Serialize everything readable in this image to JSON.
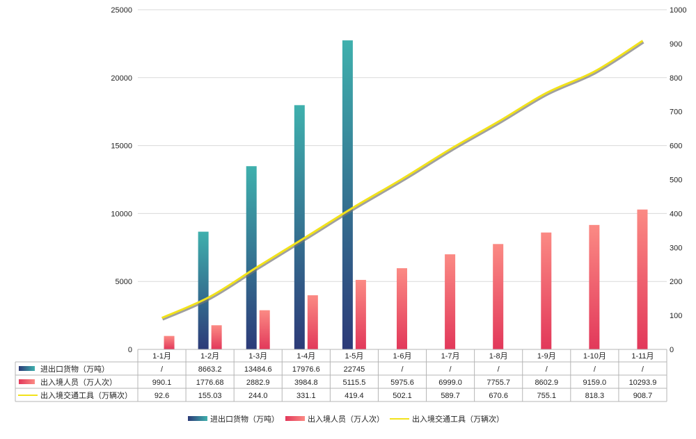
{
  "chart_data": {
    "type": "bar+line",
    "categories": [
      "1-1月",
      "1-2月",
      "1-3月",
      "1-4月",
      "1-5月",
      "1-6月",
      "1-7月",
      "1-8月",
      "1-9月",
      "1-10月",
      "1-11月"
    ],
    "series": [
      {
        "name": "进出口货物（万吨）",
        "type": "bar",
        "axis": "left",
        "values": [
          null,
          8663.2,
          13484.6,
          17976.6,
          22745,
          null,
          null,
          null,
          null,
          null,
          null
        ],
        "labels": [
          "/",
          "8663.2",
          "13484.6",
          "17976.6",
          "22745",
          "/",
          "/",
          "/",
          "/",
          "/",
          "/"
        ],
        "color_top": "#3fb0ad",
        "color_bottom": "#2c3a78"
      },
      {
        "name": "出入境人员（万人次）",
        "type": "bar",
        "axis": "left",
        "values": [
          990.1,
          1776.68,
          2882.9,
          3984.8,
          5115.5,
          5975.6,
          6999.0,
          7755.7,
          8602.9,
          9159.0,
          10293.9
        ],
        "labels": [
          "990.1",
          "1776.68",
          "2882.9",
          "3984.8",
          "5115.5",
          "5975.6",
          "6999.0",
          "7755.7",
          "8602.9",
          "9159.0",
          "10293.9"
        ],
        "color_top": "#fb8a84",
        "color_bottom": "#e2385a"
      },
      {
        "name": "出入境交通工具（万辆次）",
        "type": "line",
        "axis": "right",
        "values": [
          92.6,
          155.03,
          244.0,
          331.1,
          419.4,
          502.1,
          589.7,
          670.6,
          755.1,
          818.3,
          908.7
        ],
        "labels": [
          "92.6",
          "155.03",
          "244.0",
          "331.1",
          "419.4",
          "502.1",
          "589.7",
          "670.6",
          "755.1",
          "818.3",
          "908.7"
        ],
        "color": "#f2e21a"
      }
    ],
    "y_left": {
      "lim": [
        0,
        25000
      ],
      "ticks": [
        "0",
        "5000",
        "10000",
        "15000",
        "20000",
        "25000"
      ]
    },
    "y_right": {
      "lim": [
        0,
        1000
      ],
      "ticks": [
        "0",
        "100",
        "200",
        "300",
        "400",
        "500",
        "600",
        "700",
        "800",
        "900",
        "1000"
      ]
    },
    "grid": true,
    "legend": "bottom",
    "data_table": true
  }
}
